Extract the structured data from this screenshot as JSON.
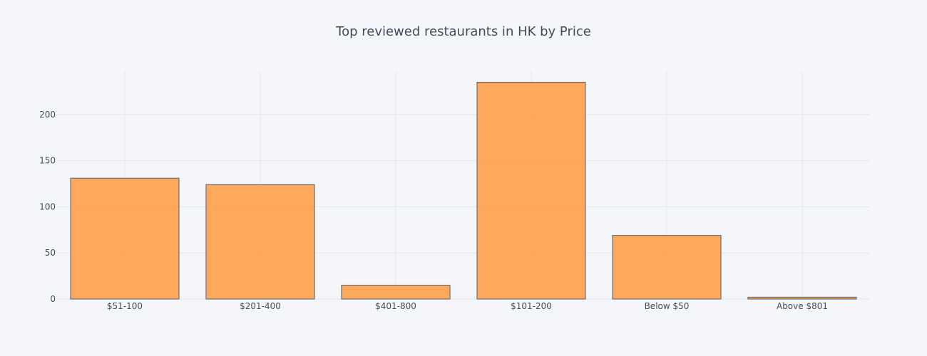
{
  "chart_data": {
    "type": "bar",
    "title": "Top reviewed restaurants in HK by Price",
    "xlabel": "",
    "ylabel": "",
    "categories": [
      "$51-100",
      "$201-400",
      "$401-800",
      "$101-200",
      "Below $50",
      "Above $801"
    ],
    "values": [
      131,
      124,
      15,
      235,
      69,
      2
    ],
    "ylim": [
      0,
      247
    ],
    "yticks": [
      0,
      50,
      100,
      150,
      200
    ],
    "grid": true,
    "legend": "none",
    "colors": {
      "bar_fill": "#ffa04a",
      "bar_outline": "#6b6e78",
      "background": "#f5f6fa",
      "grid": "#e6e8ef"
    }
  }
}
